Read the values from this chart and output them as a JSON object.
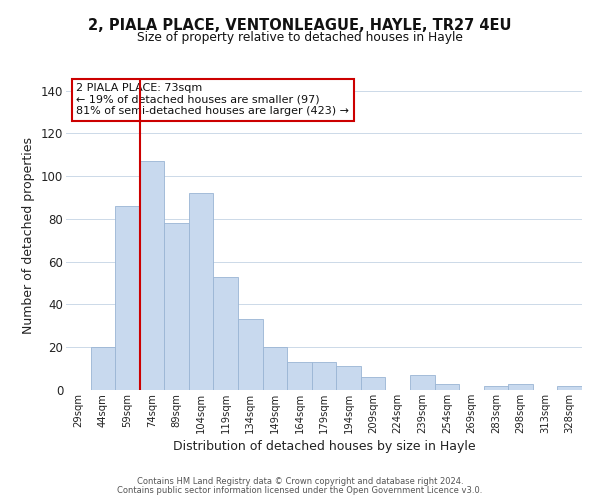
{
  "title": "2, PIALA PLACE, VENTONLEAGUE, HAYLE, TR27 4EU",
  "subtitle": "Size of property relative to detached houses in Hayle",
  "xlabel": "Distribution of detached houses by size in Hayle",
  "ylabel": "Number of detached properties",
  "bar_labels": [
    "29sqm",
    "44sqm",
    "59sqm",
    "74sqm",
    "89sqm",
    "104sqm",
    "119sqm",
    "134sqm",
    "149sqm",
    "164sqm",
    "179sqm",
    "194sqm",
    "209sqm",
    "224sqm",
    "239sqm",
    "254sqm",
    "269sqm",
    "283sqm",
    "298sqm",
    "313sqm",
    "328sqm"
  ],
  "bar_values": [
    0,
    20,
    86,
    107,
    78,
    92,
    53,
    33,
    20,
    13,
    13,
    11,
    6,
    0,
    7,
    3,
    0,
    2,
    3,
    0,
    2
  ],
  "bar_color": "#c8d9ee",
  "bar_edge_color": "#9ab5d4",
  "vline_color": "#cc0000",
  "ylim": [
    0,
    145
  ],
  "yticks": [
    0,
    20,
    40,
    60,
    80,
    100,
    120,
    140
  ],
  "annotation_line1": "2 PIALA PLACE: 73sqm",
  "annotation_line2": "← 19% of detached houses are smaller (97)",
  "annotation_line3": "81% of semi-detached houses are larger (423) →",
  "annotation_box_color": "#ffffff",
  "annotation_box_edge": "#cc0000",
  "footer1": "Contains HM Land Registry data © Crown copyright and database right 2024.",
  "footer2": "Contains public sector information licensed under the Open Government Licence v3.0.",
  "background_color": "#ffffff",
  "grid_color": "#ccd9e8"
}
